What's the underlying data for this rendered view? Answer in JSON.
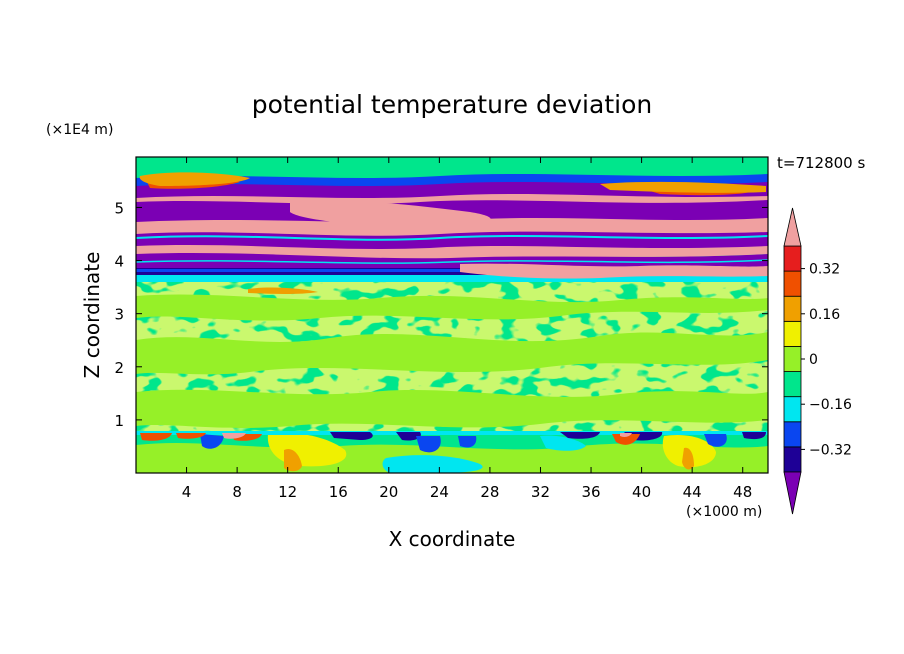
{
  "chart_data": {
    "type": "heatmap",
    "title": "potential temperature deviation",
    "xlabel": "X coordinate",
    "ylabel": "Z coordinate",
    "x_unit": "(×1000 m)",
    "y_unit": "(×1E4 m)",
    "time_label": "t=712800 s",
    "xlim": [
      0,
      50
    ],
    "ylim": [
      0,
      5.95
    ],
    "x_ticks": [
      4,
      8,
      12,
      16,
      20,
      24,
      28,
      32,
      36,
      40,
      44,
      48
    ],
    "y_ticks": [
      1,
      2,
      3,
      4,
      5
    ],
    "colorbar": {
      "levels": [
        -0.4,
        -0.32,
        -0.24,
        -0.16,
        -0.08,
        0,
        0.08,
        0.16,
        0.24,
        0.32,
        0.4
      ],
      "labeled_levels": [
        0.32,
        0.16,
        0,
        -0.16,
        -0.32
      ],
      "labels": [
        "0.32",
        "0.16",
        "0",
        "−0.16",
        "−0.32"
      ],
      "colors": [
        "#7b00b4",
        "#1e0096",
        "#0a46f0",
        "#00e6f0",
        "#00e68c",
        "#96f028",
        "#f0f000",
        "#f0a000",
        "#f05000",
        "#e61e1e",
        "#f0a0a0"
      ]
    },
    "bands": [
      {
        "z": [
          0,
          0.8
        ],
        "description": "near-surface layer, mostly neutral (light green) with warm yellow/orange patches near x=12-14 and x=43-45"
      },
      {
        "z": [
          0.75,
          0.85
        ],
        "description": "thin inversion line with alternating blue/purple cold and red/pink warm patches"
      },
      {
        "z": [
          0.85,
          3.6
        ],
        "description": "mixed layer: speckled light green (0..0.08) and green (-0.08..0)"
      },
      {
        "z": [
          3.6,
          5.7
        ],
        "description": "stratified layers alternating strongly negative (purple) and strongly positive (pink)"
      },
      {
        "z": [
          5.7,
          5.95
        ],
        "description": "top region, neutral green"
      }
    ]
  }
}
